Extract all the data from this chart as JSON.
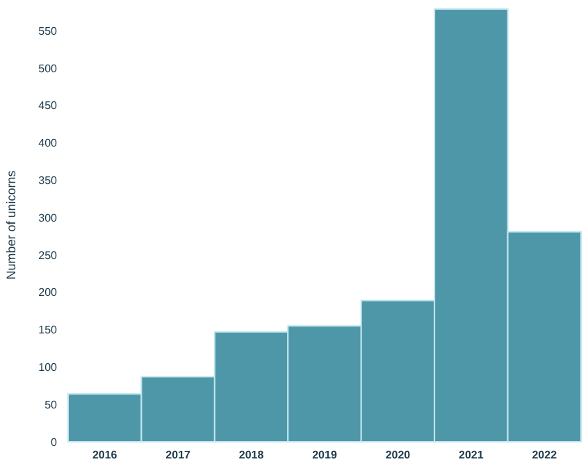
{
  "chart_data": {
    "type": "bar",
    "ylabel": "Number of unicorns",
    "categories": [
      "2016",
      "2017",
      "2018",
      "2019",
      "2020",
      "2021",
      "2022"
    ],
    "values": [
      64,
      87,
      147,
      155,
      189,
      579,
      281
    ],
    "color": "#4e97a8",
    "ylim": [
      0,
      580
    ],
    "yticks": [
      0,
      50,
      100,
      150,
      200,
      250,
      300,
      350,
      400,
      450,
      500,
      550
    ],
    "grid": false
  }
}
